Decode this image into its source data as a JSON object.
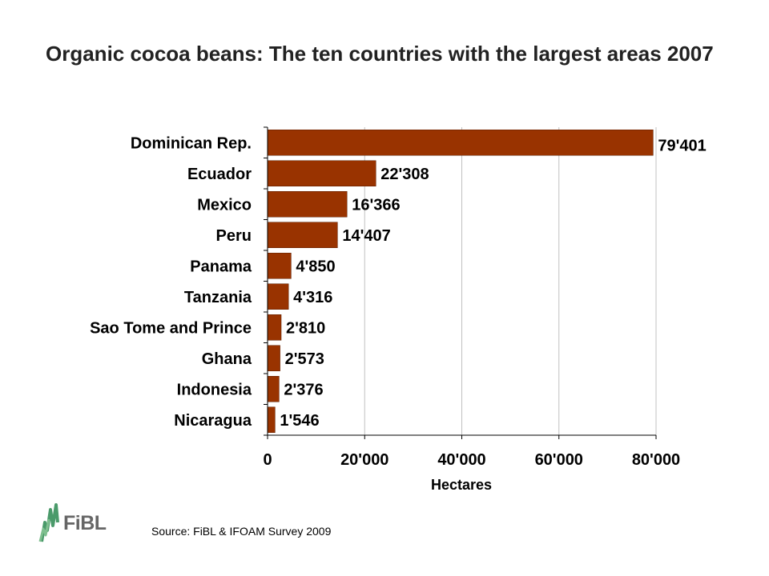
{
  "title": "Organic cocoa beans: The ten countries with the largest areas 2007",
  "source": "Source: FiBL & IFOAM Survey 2009",
  "logo": {
    "text": "FiBL",
    "colors": {
      "green": "#4a9a6a",
      "gray": "#666666"
    }
  },
  "colors": {
    "bar": "#993300",
    "bar_stroke": "#5a1e00",
    "grid": "#c0c0c0",
    "axis": "#000000"
  },
  "chart_data": {
    "type": "bar",
    "orientation": "horizontal",
    "categories": [
      "Dominican Rep.",
      "Ecuador",
      "Mexico",
      "Peru",
      "Panama",
      "Tanzania",
      "Sao Tome and Prince",
      "Ghana",
      "Indonesia",
      "Nicaragua"
    ],
    "values": [
      79401,
      22308,
      16366,
      14407,
      4850,
      4316,
      2810,
      2573,
      2376,
      1546
    ],
    "value_labels": [
      "79'401",
      "22'308",
      "16'366",
      "14'407",
      "4'850",
      "4'316",
      "2'810",
      "2'573",
      "2'376",
      "1'546"
    ],
    "xlabel": "Hectares",
    "xlim": [
      0,
      80000
    ],
    "xticks": [
      0,
      20000,
      40000,
      60000,
      80000
    ],
    "xtick_labels": [
      "0",
      "20'000",
      "40'000",
      "60'000",
      "80'000"
    ],
    "grid": "vertical"
  }
}
